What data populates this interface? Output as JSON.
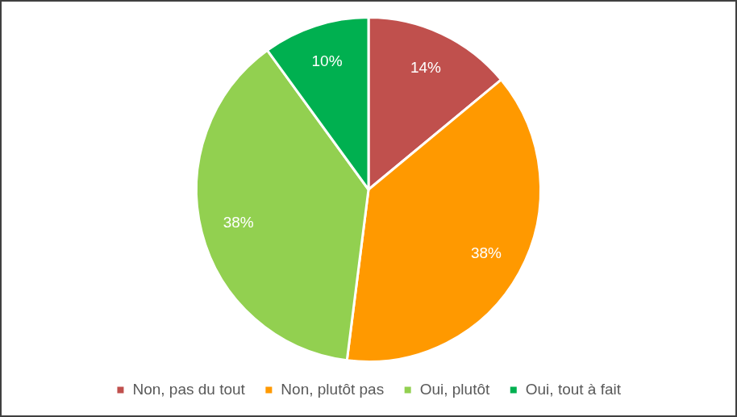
{
  "chart_data": {
    "type": "pie",
    "categories": [
      "Non, pas du tout",
      "Non, plutôt pas",
      "Oui, plutôt",
      "Oui, tout à fait"
    ],
    "values": [
      14,
      38,
      38,
      10
    ],
    "value_labels": [
      "14%",
      "38%",
      "38%",
      "10%"
    ],
    "colors": [
      "#c0504d",
      "#ff9900",
      "#92d050",
      "#00b050"
    ],
    "data_labels": true,
    "legend": "bottom"
  }
}
